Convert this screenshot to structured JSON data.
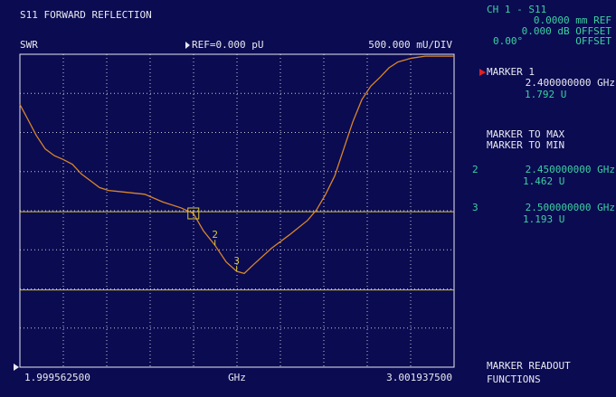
{
  "header": {
    "title": "S11 FORWARD REFLECTION",
    "format": "SWR",
    "reference": "REF=0.000 pU",
    "scale": "500.000 mU/DIV"
  },
  "channel": {
    "name": "CH 1 - S11",
    "ref_line": "0.0000 mm REF",
    "offset_db": "0.000 dB OFFSET",
    "offset_phase": "0.00°",
    "offset_phase_label": "OFFSET"
  },
  "active_marker": {
    "name": "MARKER 1",
    "frequency": "2.400000000 GHz",
    "value": "1.792 U"
  },
  "softkeys": [
    "MARKER TO MAX",
    "MARKER TO MIN"
  ],
  "marker_readouts": [
    {
      "number": "2",
      "frequency": "2.450000000 GHz",
      "value": "1.462 U"
    },
    {
      "number": "3",
      "frequency": "2.500000000 GHz",
      "value": "1.193 U"
    }
  ],
  "menu": [
    "MARKER READOUT",
    "FUNCTIONS"
  ],
  "chart_data": {
    "type": "line",
    "x_label": "GHz",
    "xlim": [
      1.9995625,
      3.0019375
    ],
    "xticks": [
      {
        "value": 1.9995625,
        "label": "1.999562500"
      },
      {
        "value": 3.0019375,
        "label": "3.001937500"
      }
    ],
    "ylim": [
      0.2,
      3.44
    ],
    "grid": true,
    "x": [
      1.9996,
      2.0163,
      2.0373,
      2.058,
      2.0789,
      2.0998,
      2.1207,
      2.1416,
      2.1624,
      2.1833,
      2.2042,
      2.246,
      2.2877,
      2.3295,
      2.3713,
      2.4,
      2.4235,
      2.45,
      2.4757,
      2.5,
      2.5175,
      2.5384,
      2.5801,
      2.6219,
      2.6636,
      2.6845,
      2.7054,
      2.7263,
      2.7472,
      2.768,
      2.7889,
      2.8098,
      2.8307,
      2.8516,
      2.8725,
      2.9038,
      2.9351,
      3.0019
    ],
    "series": [
      {
        "color": "#d8862a",
        "values": [
          2.92,
          2.78,
          2.6,
          2.46,
          2.39,
          2.35,
          2.3,
          2.2,
          2.13,
          2.06,
          2.03,
          2.01,
          1.99,
          1.91,
          1.85,
          1.792,
          1.61,
          1.462,
          1.29,
          1.193,
          1.17,
          1.26,
          1.43,
          1.57,
          1.72,
          1.83,
          1.99,
          2.18,
          2.46,
          2.74,
          2.97,
          3.11,
          3.2,
          3.3,
          3.36,
          3.4,
          3.42,
          3.42
        ]
      }
    ],
    "markers": [
      {
        "x": 2.4,
        "value": 1.792
      },
      {
        "label": "2",
        "x": 2.45,
        "value": 1.462
      },
      {
        "label": "3",
        "x": 2.5,
        "value": 1.193
      }
    ],
    "limit_lines": [
      1.81,
      1.0
    ],
    "limit_color": "#d8c83a"
  }
}
